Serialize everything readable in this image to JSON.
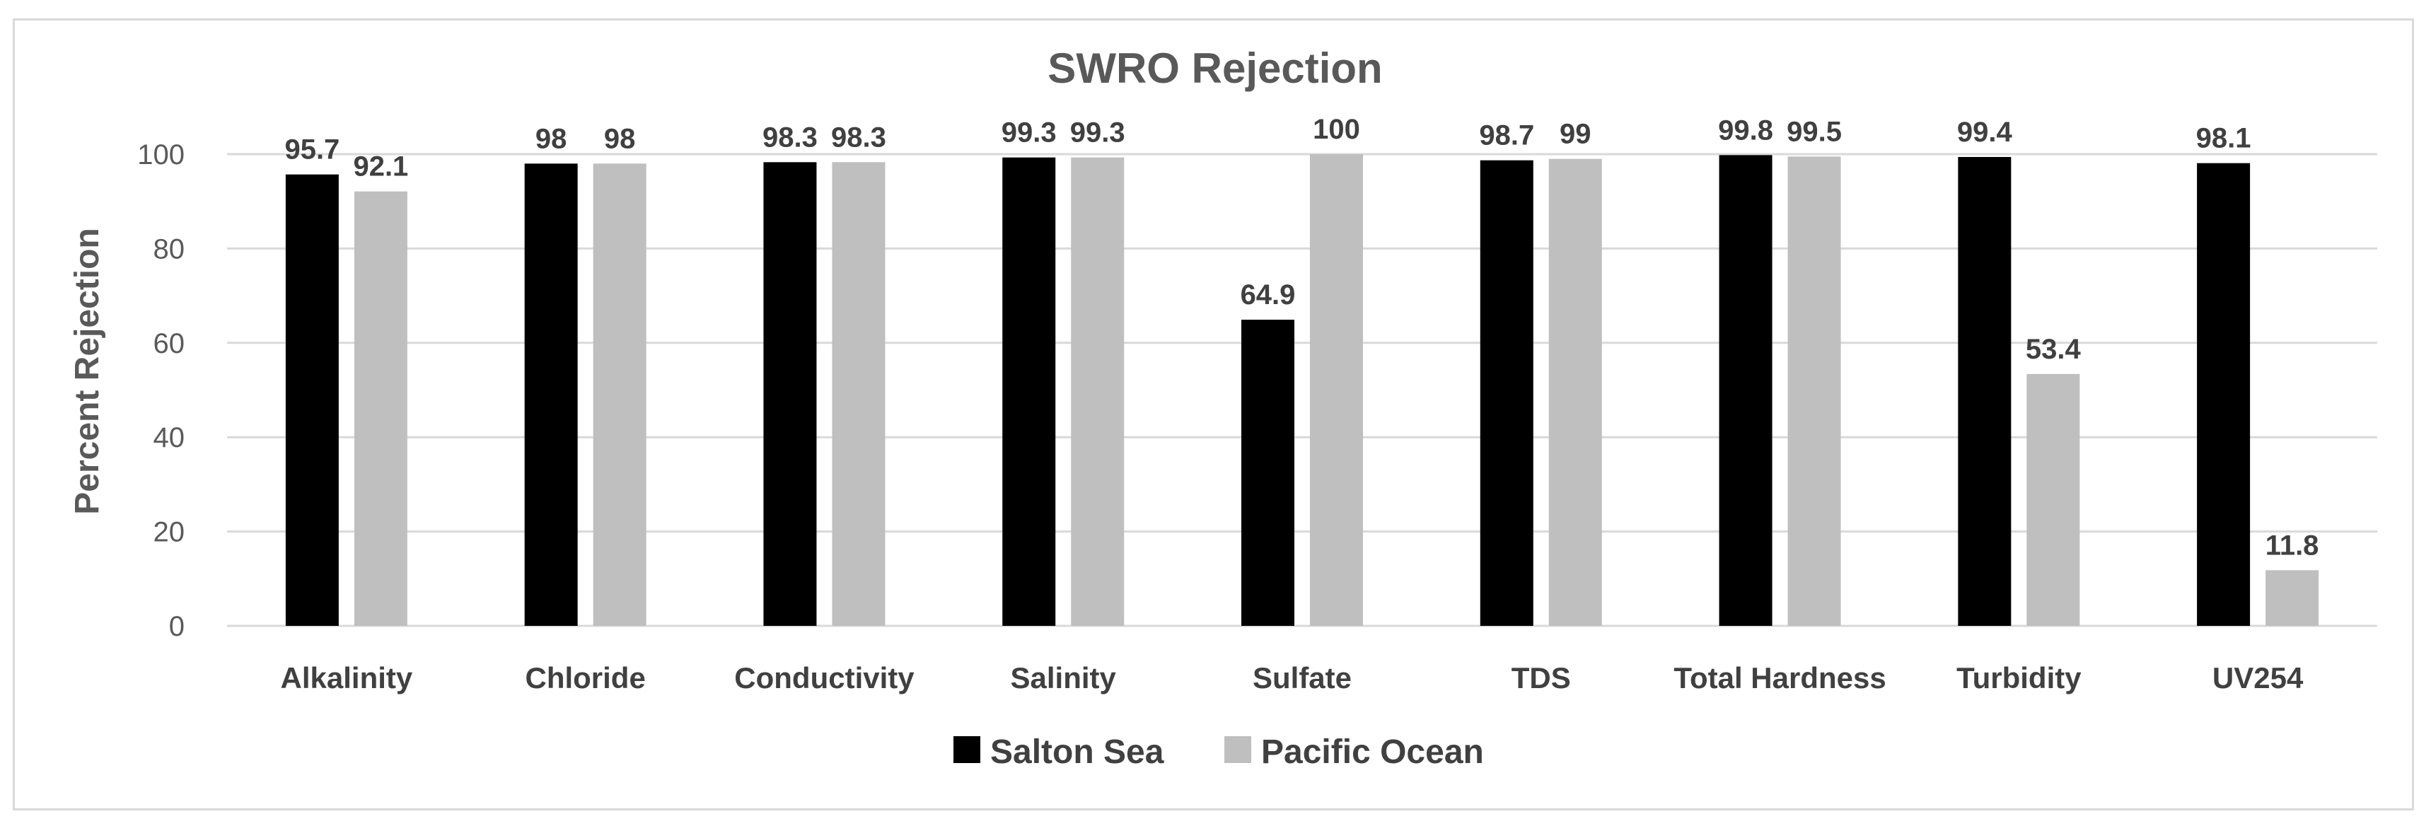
{
  "chart_data": {
    "type": "bar",
    "title": "SWRO Rejection",
    "ylabel": "Percent Rejection",
    "xlabel": "",
    "ylim": [
      0,
      100
    ],
    "yticks": [
      0,
      20,
      40,
      60,
      80,
      100
    ],
    "grid": true,
    "legend_position": "bottom",
    "categories": [
      "Alkalinity",
      "Chloride",
      "Conductivity",
      "Salinity",
      "Sulfate",
      "TDS",
      "Total Hardness",
      "Turbidity",
      "UV254"
    ],
    "series": [
      {
        "name": "Salton Sea",
        "color": "#000000",
        "values": [
          95.7,
          98,
          98.3,
          99.3,
          64.9,
          98.7,
          99.8,
          99.4,
          98.1
        ],
        "labels": [
          "95.7",
          "98",
          "98.3",
          "99.3",
          "64.9",
          "98.7",
          "99.8",
          "99.4",
          "98.1"
        ]
      },
      {
        "name": "Pacific Ocean",
        "color": "#bfbfbf",
        "values": [
          92.1,
          98,
          98.3,
          99.3,
          100,
          99,
          99.5,
          53.4,
          11.8
        ],
        "labels": [
          "92.1",
          "98",
          "98.3",
          "99.3",
          "100",
          "99",
          "99.5",
          "53.4",
          "11.8"
        ]
      }
    ]
  }
}
